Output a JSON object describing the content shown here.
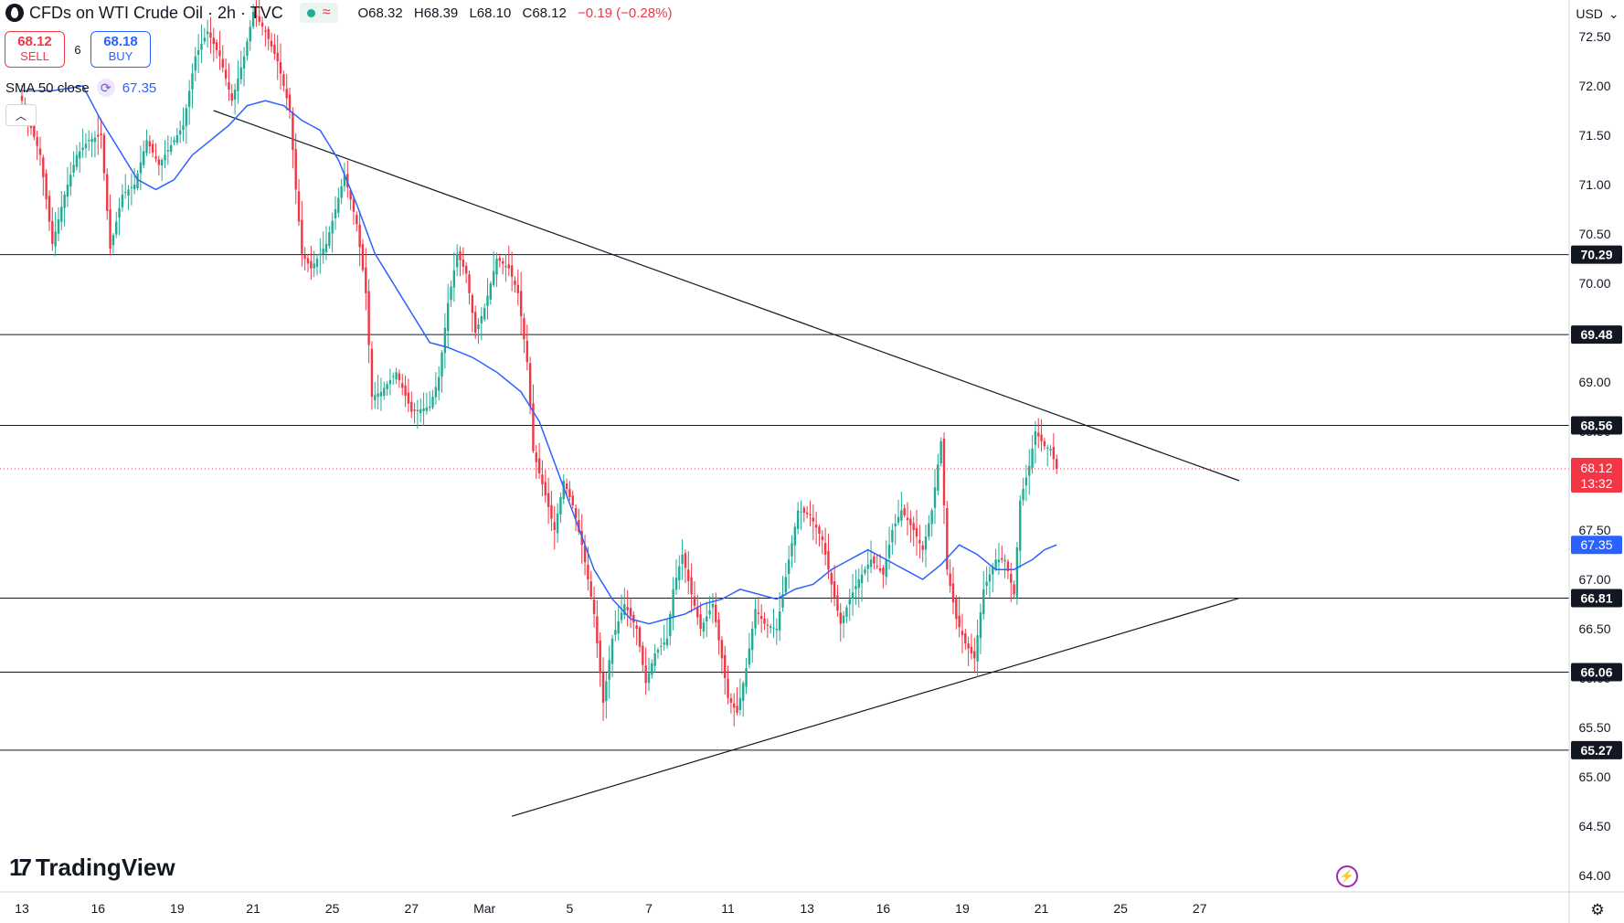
{
  "header": {
    "title": "CFDs on WTI Crude Oil · 2h · TVC",
    "ohlc": {
      "open": "O68.32",
      "high": "H68.39",
      "low": "L68.10",
      "close": "C68.12",
      "change": "−0.19 (−0.28%)"
    }
  },
  "trade": {
    "sell_price": "68.12",
    "sell_label": "SELL",
    "spread": "6",
    "buy_price": "68.18",
    "buy_label": "BUY"
  },
  "indicator": {
    "name": "SMA 50 close",
    "value": "67.35"
  },
  "currency": {
    "label": "USD"
  },
  "branding": {
    "name": "TradingView"
  },
  "colors": {
    "up": "#22ab94",
    "down": "#f23645",
    "sma": "#2962ff",
    "levels": "#131722",
    "price_tag": "#f23645"
  },
  "chart_data": {
    "type": "candlestick",
    "ylim": [
      63.9,
      72.9
    ],
    "y_ticks": [
      64.0,
      64.5,
      65.0,
      65.5,
      66.0,
      66.5,
      67.0,
      67.5,
      68.0,
      68.5,
      69.0,
      69.5,
      70.0,
      70.5,
      71.0,
      71.5,
      72.0,
      72.5
    ],
    "x_labels": [
      "13",
      "16",
      "19",
      "21",
      "25",
      "27",
      "Mar",
      "5",
      "7",
      "11",
      "13",
      "16",
      "19",
      "21",
      "25",
      "27"
    ],
    "x_label_index": [
      0,
      25,
      51,
      76,
      102,
      128,
      152,
      180,
      206,
      232,
      258,
      283,
      309,
      335,
      361,
      387
    ],
    "candle_count": 346,
    "horizontal_levels": [
      70.29,
      69.48,
      68.56,
      66.81,
      66.06,
      65.27
    ],
    "last_price": {
      "value": 68.12,
      "label": "68.12",
      "countdown": "13:32"
    },
    "sma_last": {
      "value": 67.35,
      "label": "67.35"
    },
    "trendlines": [
      {
        "name": "descending-resistance",
        "from": [
          63,
          71.75
        ],
        "to": [
          400,
          68.0
        ]
      },
      {
        "name": "ascending-support",
        "from": [
          161,
          64.6
        ],
        "to": [
          400,
          66.81
        ]
      }
    ],
    "price_anchors": [
      [
        0,
        71.85
      ],
      [
        6,
        71.3
      ],
      [
        10,
        70.4
      ],
      [
        14,
        70.9
      ],
      [
        18,
        71.3
      ],
      [
        22,
        71.45
      ],
      [
        26,
        71.5
      ],
      [
        29,
        70.35
      ],
      [
        33,
        70.9
      ],
      [
        37,
        71.0
      ],
      [
        41,
        71.45
      ],
      [
        45,
        71.2
      ],
      [
        49,
        71.4
      ],
      [
        53,
        71.6
      ],
      [
        57,
        72.3
      ],
      [
        61,
        72.55
      ],
      [
        65,
        72.3
      ],
      [
        69,
        71.85
      ],
      [
        73,
        72.3
      ],
      [
        76,
        72.75
      ],
      [
        80,
        72.55
      ],
      [
        84,
        72.25
      ],
      [
        88,
        71.75
      ],
      [
        90,
        70.95
      ],
      [
        92,
        70.3
      ],
      [
        95,
        70.15
      ],
      [
        100,
        70.4
      ],
      [
        103,
        70.75
      ],
      [
        106,
        71.1
      ],
      [
        110,
        70.6
      ],
      [
        113,
        69.9
      ],
      [
        115,
        68.85
      ],
      [
        118,
        68.9
      ],
      [
        123,
        69.1
      ],
      [
        128,
        68.7
      ],
      [
        134,
        68.75
      ],
      [
        137,
        69.05
      ],
      [
        140,
        69.8
      ],
      [
        143,
        70.3
      ],
      [
        146,
        70.1
      ],
      [
        149,
        69.5
      ],
      [
        152,
        69.75
      ],
      [
        156,
        70.25
      ],
      [
        160,
        70.15
      ],
      [
        163,
        69.9
      ],
      [
        166,
        69.2
      ],
      [
        168,
        68.3
      ],
      [
        172,
        67.85
      ],
      [
        175,
        67.5
      ],
      [
        178,
        68.0
      ],
      [
        181,
        67.75
      ],
      [
        184,
        67.35
      ],
      [
        188,
        66.65
      ],
      [
        191,
        65.75
      ],
      [
        194,
        66.4
      ],
      [
        198,
        66.75
      ],
      [
        202,
        66.5
      ],
      [
        205,
        65.95
      ],
      [
        208,
        66.25
      ],
      [
        212,
        66.4
      ],
      [
        214,
        66.9
      ],
      [
        217,
        67.25
      ],
      [
        220,
        66.85
      ],
      [
        223,
        66.5
      ],
      [
        227,
        66.75
      ],
      [
        230,
        66.2
      ],
      [
        232,
        65.8
      ],
      [
        235,
        65.65
      ],
      [
        238,
        66.1
      ],
      [
        241,
        66.7
      ],
      [
        244,
        66.55
      ],
      [
        248,
        66.5
      ],
      [
        252,
        67.2
      ],
      [
        255,
        67.7
      ],
      [
        259,
        67.65
      ],
      [
        263,
        67.4
      ],
      [
        266,
        66.95
      ],
      [
        269,
        66.55
      ],
      [
        272,
        66.8
      ],
      [
        275,
        67.0
      ],
      [
        279,
        67.2
      ],
      [
        283,
        67.05
      ],
      [
        286,
        67.5
      ],
      [
        289,
        67.7
      ],
      [
        293,
        67.5
      ],
      [
        296,
        67.3
      ],
      [
        299,
        67.7
      ],
      [
        302,
        68.4
      ],
      [
        304,
        67.1
      ],
      [
        307,
        66.6
      ],
      [
        310,
        66.35
      ],
      [
        313,
        66.2
      ],
      [
        316,
        66.9
      ],
      [
        320,
        67.2
      ],
      [
        323,
        67.2
      ],
      [
        326,
        66.85
      ],
      [
        328,
        67.8
      ],
      [
        331,
        68.15
      ],
      [
        333,
        68.5
      ],
      [
        336,
        68.35
      ],
      [
        338,
        68.32
      ],
      [
        340,
        68.12
      ]
    ],
    "sma_anchors": [
      [
        0,
        71.95
      ],
      [
        10,
        71.95
      ],
      [
        20,
        72.0
      ],
      [
        26,
        71.65
      ],
      [
        32,
        71.35
      ],
      [
        38,
        71.05
      ],
      [
        44,
        70.95
      ],
      [
        50,
        71.05
      ],
      [
        56,
        71.3
      ],
      [
        62,
        71.45
      ],
      [
        68,
        71.6
      ],
      [
        74,
        71.8
      ],
      [
        80,
        71.85
      ],
      [
        86,
        71.8
      ],
      [
        92,
        71.65
      ],
      [
        98,
        71.55
      ],
      [
        104,
        71.25
      ],
      [
        110,
        70.8
      ],
      [
        116,
        70.3
      ],
      [
        122,
        70.0
      ],
      [
        128,
        69.7
      ],
      [
        134,
        69.4
      ],
      [
        140,
        69.35
      ],
      [
        148,
        69.25
      ],
      [
        156,
        69.1
      ],
      [
        164,
        68.9
      ],
      [
        170,
        68.6
      ],
      [
        176,
        68.1
      ],
      [
        182,
        67.6
      ],
      [
        188,
        67.1
      ],
      [
        194,
        66.8
      ],
      [
        200,
        66.6
      ],
      [
        206,
        66.55
      ],
      [
        212,
        66.6
      ],
      [
        218,
        66.65
      ],
      [
        224,
        66.75
      ],
      [
        230,
        66.8
      ],
      [
        236,
        66.9
      ],
      [
        242,
        66.85
      ],
      [
        248,
        66.8
      ],
      [
        254,
        66.9
      ],
      [
        260,
        66.95
      ],
      [
        266,
        67.1
      ],
      [
        272,
        67.2
      ],
      [
        278,
        67.3
      ],
      [
        284,
        67.2
      ],
      [
        290,
        67.1
      ],
      [
        296,
        67.0
      ],
      [
        302,
        67.15
      ],
      [
        308,
        67.35
      ],
      [
        314,
        67.25
      ],
      [
        320,
        67.1
      ],
      [
        326,
        67.1
      ],
      [
        332,
        67.2
      ],
      [
        336,
        67.3
      ],
      [
        340,
        67.35
      ]
    ]
  }
}
